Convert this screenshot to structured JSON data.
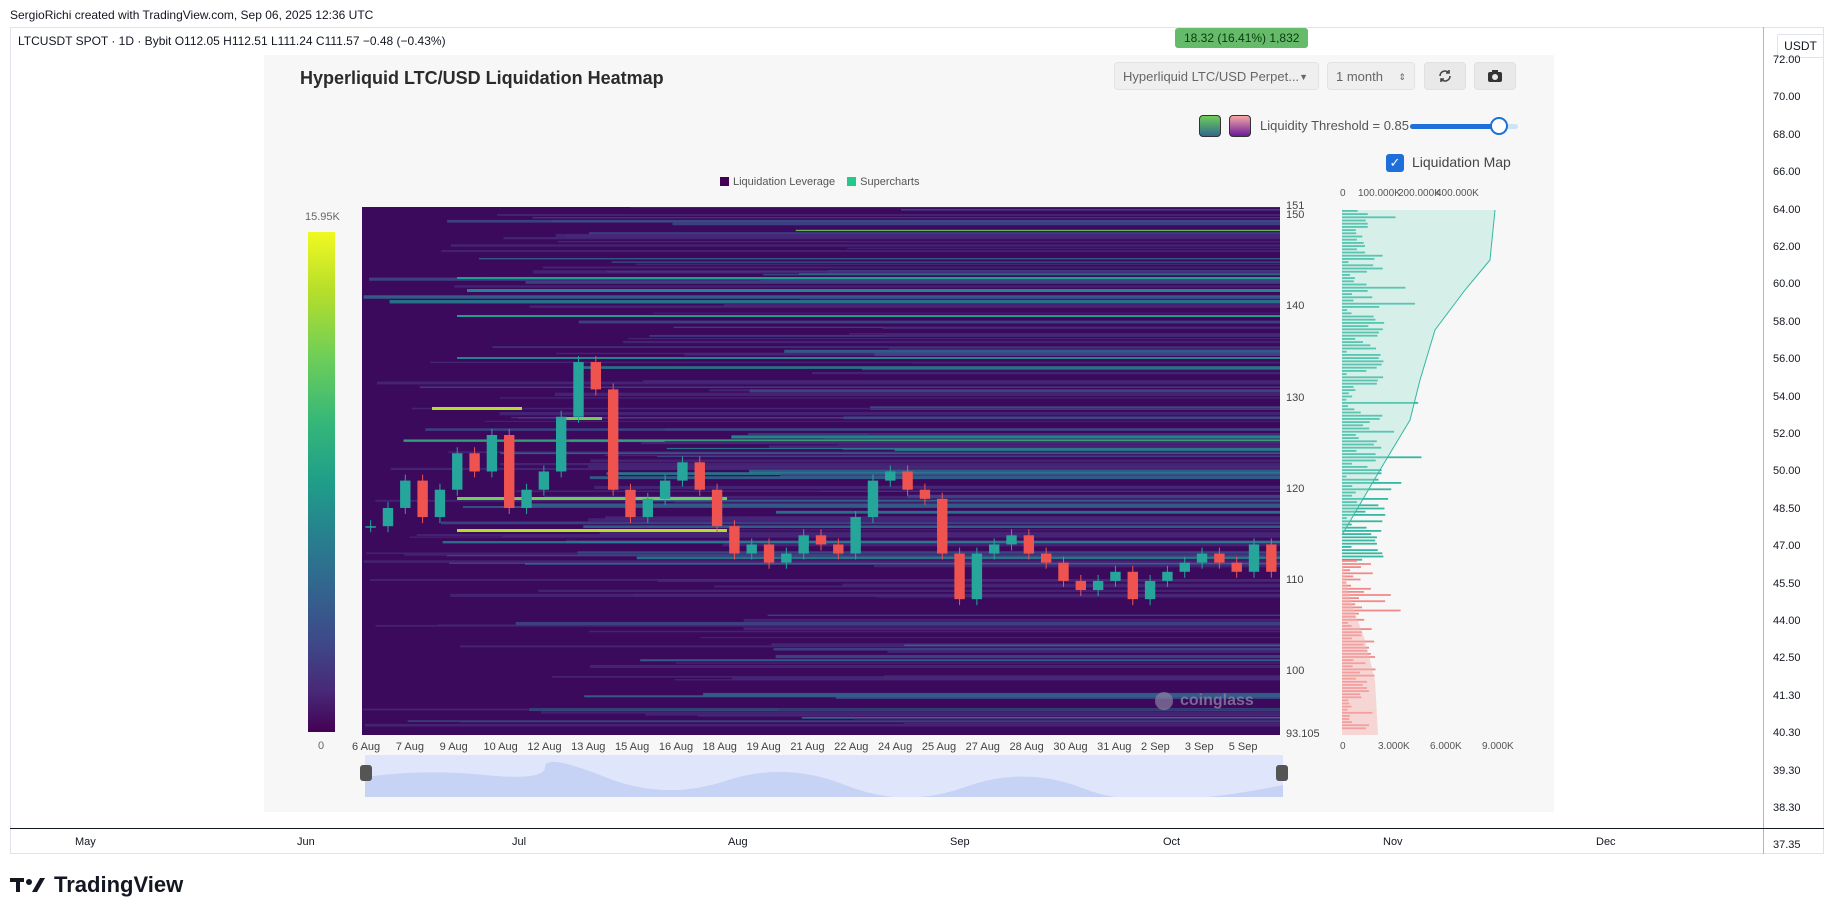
{
  "attribution": "SergioRichi created with TradingView.com, Sep 06, 2025 12:36 UTC",
  "symbol_line": "LTCUSDT SPOT · 1D · Bybit  O112.05  H112.51  L111.24  C111.57  −0.48 (−0.43%)",
  "badge": "18.32 (16.41%) 1,832",
  "currency_label": "USDT",
  "right_axis_ticks": [
    "72.00",
    "70.00",
    "68.00",
    "66.00",
    "64.00",
    "62.00",
    "60.00",
    "58.00",
    "56.00",
    "54.00",
    "52.00",
    "50.00",
    "48.50",
    "47.00",
    "45.50",
    "44.00",
    "42.50",
    "41.30",
    "40.30",
    "39.30",
    "38.30",
    "37.35"
  ],
  "bottom_months": [
    "May",
    "Jun",
    "Jul",
    "Aug",
    "Sep",
    "Oct",
    "Nov",
    "Dec"
  ],
  "brand": "TradingView",
  "panel": {
    "title": "Hyperliquid LTC/USD Liquidation Heatmap",
    "exchange_select": "Hyperliquid LTC/USD Perpet...",
    "range_select": "1 month",
    "refresh_icon": "refresh-icon",
    "camera_icon": "camera-icon",
    "threshold_label": "Liquidity Threshold = 0.85",
    "threshold_value": 0.85,
    "liq_map_label": "Liquidation Map",
    "liq_map_checked": true,
    "watermark": "coinglass"
  },
  "chart_data": [
    {
      "type": "heatmap",
      "legend": [
        {
          "name": "Liquidation Leverage",
          "color": "#440154"
        },
        {
          "name": "Supercharts",
          "color": "#22c98a"
        }
      ],
      "colorbar": {
        "max_label": "15.95K",
        "min_label": "0"
      },
      "x_ticks": [
        "6 Aug",
        "7 Aug",
        "9 Aug",
        "10 Aug",
        "12 Aug",
        "13 Aug",
        "15 Aug",
        "16 Aug",
        "18 Aug",
        "19 Aug",
        "21 Aug",
        "22 Aug",
        "24 Aug",
        "25 Aug",
        "27 Aug",
        "28 Aug",
        "30 Aug",
        "31 Aug",
        "2 Sep",
        "3 Sep",
        "5 Sep"
      ],
      "y_ticks": [
        "151",
        "150",
        "140",
        "130",
        "120",
        "110",
        "100",
        "93.105"
      ],
      "ylim": [
        93.105,
        151
      ],
      "price_close_series": [
        116,
        118,
        121,
        117,
        120,
        124,
        122,
        126,
        118,
        120,
        122,
        128,
        134,
        131,
        120,
        117,
        119,
        121,
        123,
        120,
        116,
        113,
        114,
        112,
        113,
        115,
        114,
        113,
        117,
        121,
        122,
        120,
        119,
        113,
        108,
        113,
        114,
        115,
        113,
        112,
        110,
        109,
        110,
        111,
        108,
        110,
        111,
        112,
        113,
        112,
        111,
        114,
        111
      ]
    },
    {
      "type": "bar",
      "orientation": "horizontal",
      "top_ticks": [
        "0",
        "100.000K",
        "200.000K",
        "400.000K"
      ],
      "bottom_ticks": [
        "0",
        "3.000K",
        "6.000K",
        "9.000K"
      ]
    }
  ]
}
